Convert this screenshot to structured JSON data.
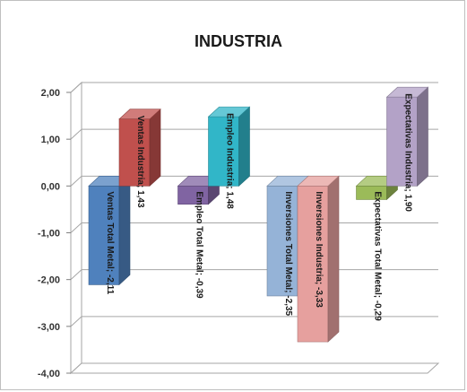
{
  "chart_data": {
    "type": "bar",
    "title": "INDUSTRIA",
    "ylim": [
      -4,
      2
    ],
    "yticks": [
      "2,00",
      "1,00",
      "0,00",
      "-1,00",
      "-2,00",
      "-3,00",
      "-4,00"
    ],
    "grid": true,
    "legend": "none",
    "bars": [
      {
        "label": "Ventas Total Metal; -2,11",
        "value": -2.11,
        "color": "#4f81bd",
        "group": 0
      },
      {
        "label": "Ventas Industria; 1,43",
        "value": 1.43,
        "color": "#c0504d",
        "group": 0
      },
      {
        "label": "Empleo Total Metal; -0,39",
        "value": -0.39,
        "color": "#8064a2",
        "group": 1
      },
      {
        "label": "Empleo Industria; 1,48",
        "value": 1.48,
        "color": "#31b6c8",
        "group": 1
      },
      {
        "label": "Inversiones Total Metal; -2,35",
        "value": -2.35,
        "color": "#95b3d7",
        "group": 2
      },
      {
        "label": "Inversiones Industria; -3,33",
        "value": -3.33,
        "color": "#e6a09e",
        "group": 2
      },
      {
        "label": "Expectativas Total Metal; -0,29",
        "value": -0.29,
        "color": "#9bbb59",
        "group": 3
      },
      {
        "label": "Expectativas Industria; 1,90",
        "value": 1.9,
        "color": "#b3a2c7",
        "group": 3
      }
    ]
  }
}
